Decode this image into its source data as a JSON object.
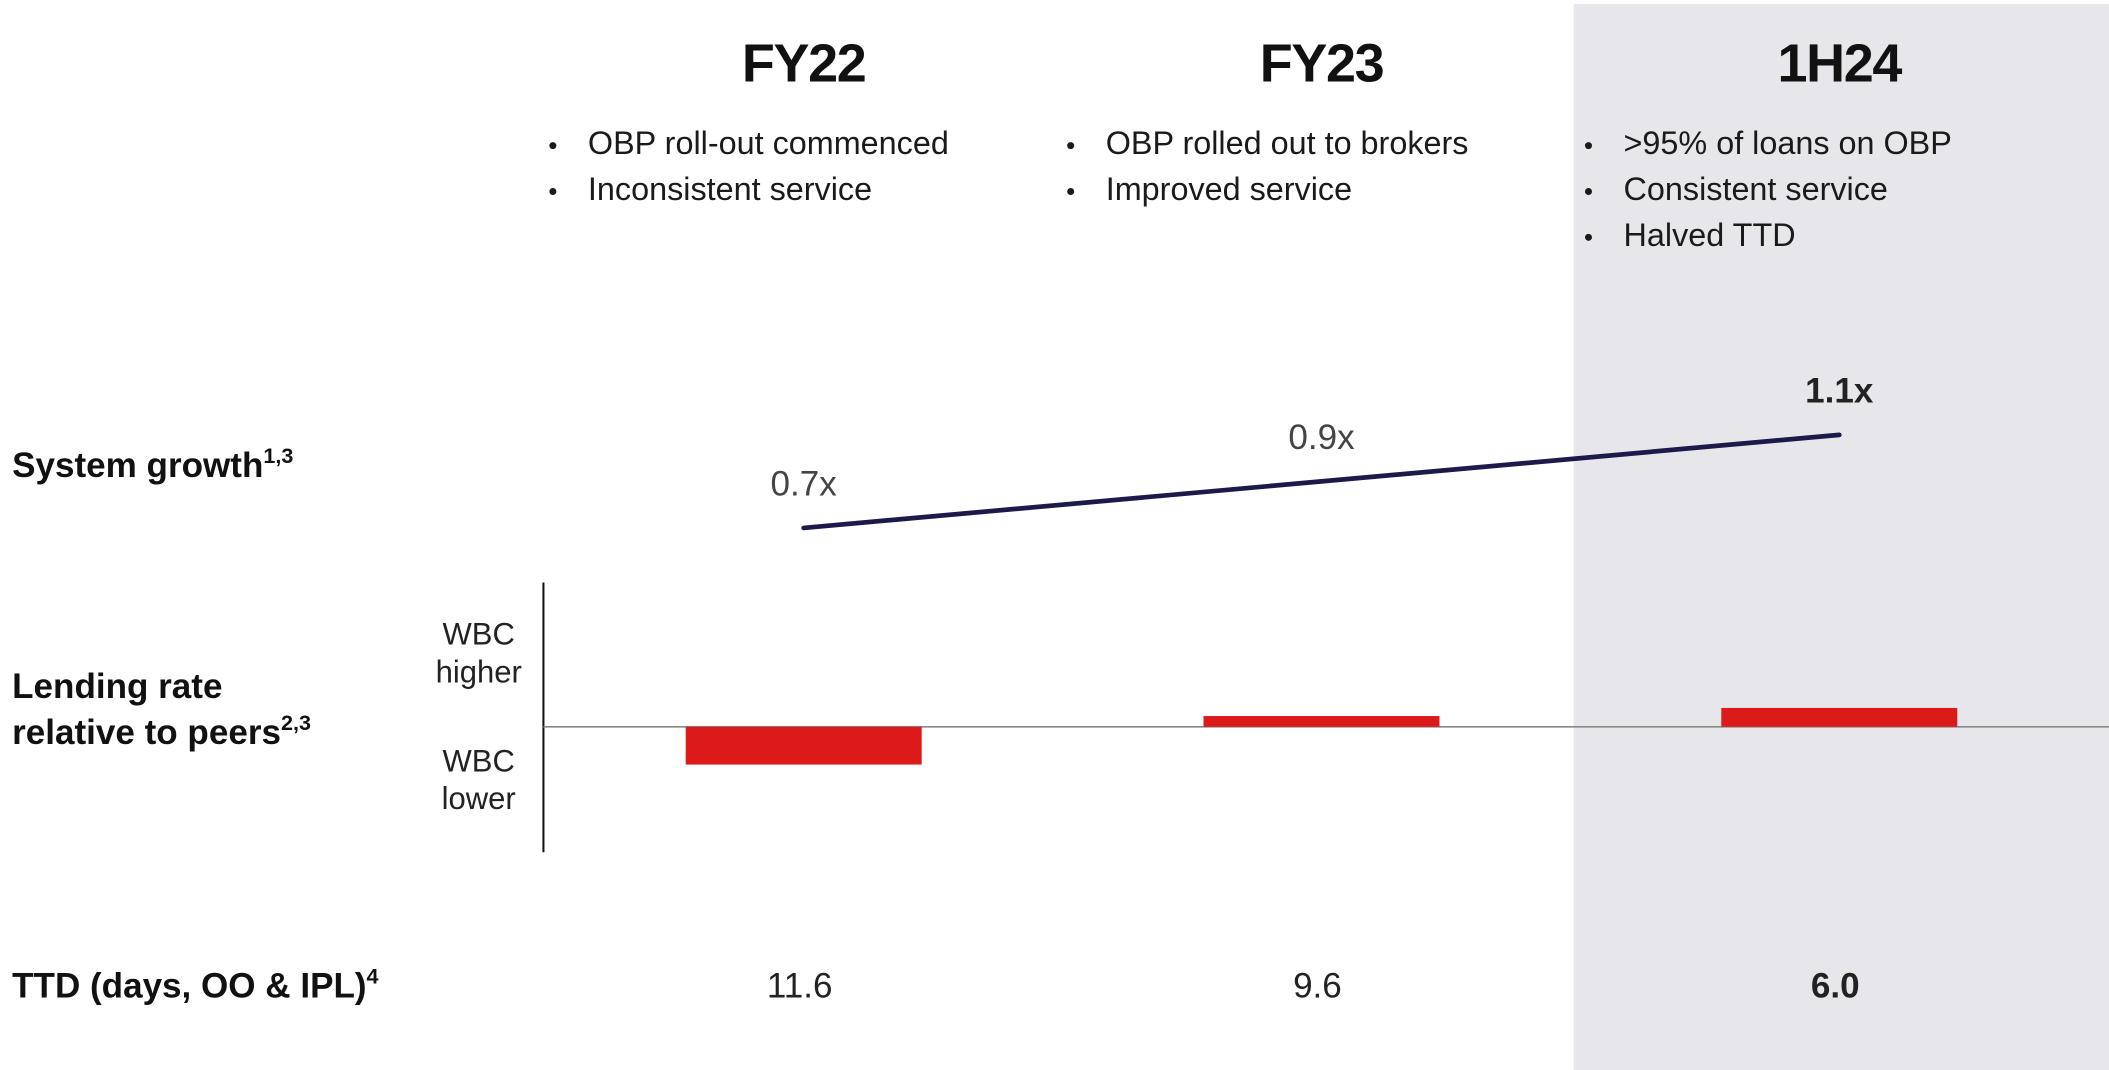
{
  "chart_data": {
    "type": "line",
    "categories": [
      "FY22",
      "FY23",
      "1H24"
    ],
    "bullets": [
      [
        "OBP roll-out commenced",
        "Inconsistent service"
      ],
      [
        "OBP rolled out to brokers",
        "Improved service"
      ],
      [
        ">95% of loans on OBP",
        "Consistent service",
        "Halved  TTD"
      ]
    ],
    "rows": [
      {
        "lines": [
          "System growth"
        ],
        "note": "1,3"
      },
      {
        "lines": [
          "Lending rate",
          "relative to peers"
        ],
        "note": "2,3"
      },
      {
        "lines": [
          "TTD (days, OO & IPL)"
        ],
        "note": "4"
      }
    ],
    "series": [
      {
        "name": "System growth",
        "color": "#1c1a4a",
        "values": [
          0.7,
          0.9,
          1.1
        ],
        "value_labels": [
          "0.7x",
          "0.9x",
          "1.1x"
        ]
      }
    ],
    "ylim": [
      0.5,
      1.3
    ],
    "lending": {
      "type": "bar",
      "color": "#dc1a1a",
      "values": [
        -0.28,
        0.08,
        0.14
      ],
      "ylim": [
        -1,
        1
      ],
      "axis_labels": [
        "WBC\nhigher",
        "WBC\nlower"
      ]
    },
    "ttd": {
      "values": [
        11.6,
        9.6,
        6
      ],
      "value_labels": [
        "11.6",
        "9.6",
        "6.0"
      ]
    }
  }
}
